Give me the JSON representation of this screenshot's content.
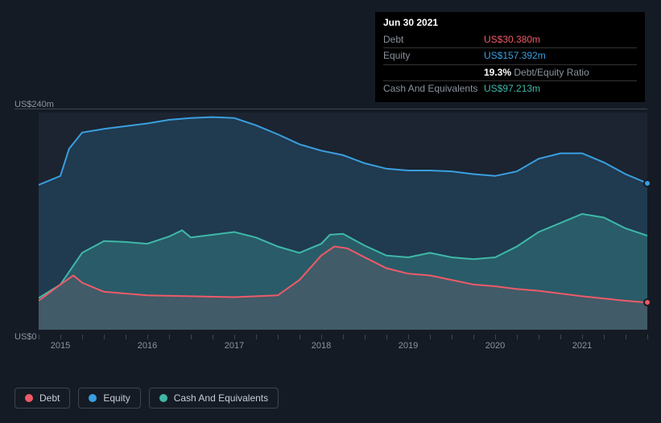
{
  "chart": {
    "type": "area",
    "background_color": "#1b2430",
    "page_background": "#151b24",
    "grid_color": "#3a4553",
    "text_color": "#8a939f",
    "x": {
      "labels": [
        "2015",
        "2016",
        "2017",
        "2018",
        "2019",
        "2020",
        "2021"
      ],
      "domain": [
        2014.75,
        2021.75
      ],
      "ticks_per_year": 4
    },
    "y": {
      "min": 0,
      "max": 240,
      "labels": [
        {
          "v": 0,
          "text": "US$0"
        },
        {
          "v": 240,
          "text": "US$240m"
        }
      ]
    },
    "series": [
      {
        "name": "Equity",
        "color": "#3a9fe0",
        "fill": "rgba(58,159,224,0.18)",
        "stroke_width": 2,
        "points": [
          [
            2014.75,
            160
          ],
          [
            2015.0,
            170
          ],
          [
            2015.1,
            200
          ],
          [
            2015.25,
            218
          ],
          [
            2015.5,
            222
          ],
          [
            2015.75,
            225
          ],
          [
            2016.0,
            228
          ],
          [
            2016.25,
            232
          ],
          [
            2016.5,
            234
          ],
          [
            2016.75,
            235
          ],
          [
            2017.0,
            234
          ],
          [
            2017.25,
            226
          ],
          [
            2017.5,
            216
          ],
          [
            2017.75,
            205
          ],
          [
            2018.0,
            198
          ],
          [
            2018.25,
            193
          ],
          [
            2018.5,
            184
          ],
          [
            2018.75,
            178
          ],
          [
            2019.0,
            176
          ],
          [
            2019.25,
            176
          ],
          [
            2019.5,
            175
          ],
          [
            2019.75,
            172
          ],
          [
            2020.0,
            170
          ],
          [
            2020.25,
            175
          ],
          [
            2020.5,
            189
          ],
          [
            2020.75,
            195
          ],
          [
            2021.0,
            195
          ],
          [
            2021.25,
            185
          ],
          [
            2021.5,
            172
          ],
          [
            2021.75,
            162
          ]
        ]
      },
      {
        "name": "Cash And Equivalents",
        "color": "#3fb8a8",
        "fill": "rgba(63,184,168,0.28)",
        "stroke_width": 2,
        "points": [
          [
            2014.75,
            35
          ],
          [
            2015.0,
            50
          ],
          [
            2015.25,
            85
          ],
          [
            2015.5,
            98
          ],
          [
            2015.75,
            97
          ],
          [
            2016.0,
            95
          ],
          [
            2016.25,
            103
          ],
          [
            2016.4,
            110
          ],
          [
            2016.5,
            102
          ],
          [
            2016.75,
            105
          ],
          [
            2017.0,
            108
          ],
          [
            2017.25,
            102
          ],
          [
            2017.5,
            92
          ],
          [
            2017.75,
            85
          ],
          [
            2018.0,
            95
          ],
          [
            2018.1,
            105
          ],
          [
            2018.25,
            106
          ],
          [
            2018.5,
            93
          ],
          [
            2018.75,
            82
          ],
          [
            2019.0,
            80
          ],
          [
            2019.25,
            85
          ],
          [
            2019.5,
            80
          ],
          [
            2019.75,
            78
          ],
          [
            2020.0,
            80
          ],
          [
            2020.25,
            92
          ],
          [
            2020.5,
            108
          ],
          [
            2020.75,
            118
          ],
          [
            2021.0,
            128
          ],
          [
            2021.25,
            124
          ],
          [
            2021.5,
            112
          ],
          [
            2021.75,
            104
          ]
        ]
      },
      {
        "name": "Debt",
        "color": "#ef5a68",
        "fill": "rgba(239,90,104,0.12)",
        "stroke_width": 2,
        "points": [
          [
            2014.75,
            32
          ],
          [
            2015.0,
            50
          ],
          [
            2015.15,
            60
          ],
          [
            2015.25,
            52
          ],
          [
            2015.5,
            42
          ],
          [
            2015.75,
            40
          ],
          [
            2016.0,
            38
          ],
          [
            2016.5,
            37
          ],
          [
            2017.0,
            36
          ],
          [
            2017.25,
            37
          ],
          [
            2017.5,
            38
          ],
          [
            2017.75,
            55
          ],
          [
            2018.0,
            82
          ],
          [
            2018.15,
            92
          ],
          [
            2018.3,
            90
          ],
          [
            2018.5,
            80
          ],
          [
            2018.75,
            68
          ],
          [
            2019.0,
            62
          ],
          [
            2019.25,
            60
          ],
          [
            2019.5,
            55
          ],
          [
            2019.75,
            50
          ],
          [
            2020.0,
            48
          ],
          [
            2020.25,
            45
          ],
          [
            2020.5,
            43
          ],
          [
            2020.75,
            40
          ],
          [
            2021.0,
            37
          ],
          [
            2021.5,
            32
          ],
          [
            2021.75,
            30
          ]
        ]
      }
    ],
    "hover_markers": [
      {
        "series": "Equity",
        "x": 2021.75,
        "y": 162,
        "color": "#3a9fe0"
      },
      {
        "series": "Debt",
        "x": 2021.75,
        "y": 30,
        "color": "#ef5a68"
      }
    ]
  },
  "tooltip": {
    "date": "Jun 30 2021",
    "rows": [
      {
        "label": "Debt",
        "value": "US$30.380m",
        "value_class": "c-debt"
      },
      {
        "label": "Equity",
        "value": "US$157.392m",
        "value_class": "c-equity"
      },
      {
        "label": "",
        "value_prefix": "19.3%",
        "value_suffix": "Debt/Equity Ratio"
      },
      {
        "label": "Cash And Equivalents",
        "value": "US$97.213m",
        "value_class": "c-cash"
      }
    ]
  },
  "legend": [
    {
      "label": "Debt",
      "color": "#ef5a68"
    },
    {
      "label": "Equity",
      "color": "#3a9fe0"
    },
    {
      "label": "Cash And Equivalents",
      "color": "#3fb8a8"
    }
  ]
}
